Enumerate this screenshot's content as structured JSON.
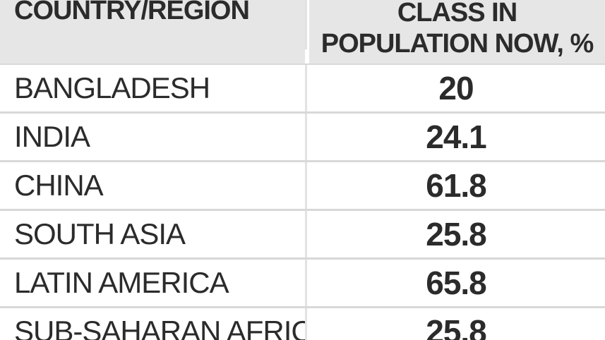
{
  "chart_data": {
    "type": "table",
    "columns": [
      "COUNTRY/REGION",
      "CLASS IN POPULATION NOW, %"
    ],
    "header_lines": [
      "CLASS IN",
      "POPULATION NOW, %"
    ],
    "rows": [
      {
        "country": "BANGLADESH",
        "value": "20"
      },
      {
        "country": "INDIA",
        "value": "24.1"
      },
      {
        "country": "CHINA",
        "value": "61.8"
      },
      {
        "country": "SOUTH ASIA",
        "value": "25.8"
      },
      {
        "country": "LATIN AMERICA",
        "value": "65.8"
      },
      {
        "country": "SUB-SAHARAN AFRICA",
        "value": "25.8"
      }
    ]
  },
  "colors": {
    "header_bg": "#e6e6e6",
    "text": "#2b2b2b",
    "divider": "#d8d8d8"
  }
}
